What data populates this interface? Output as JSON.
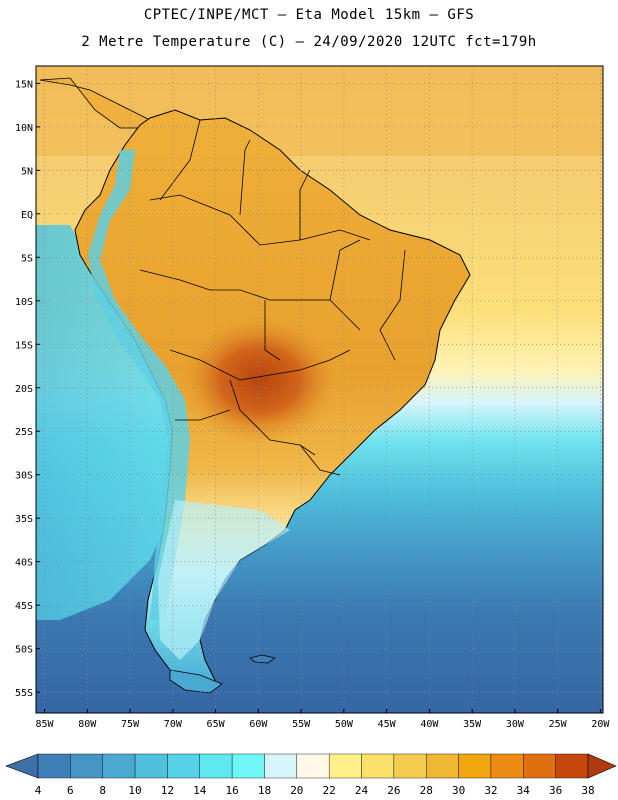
{
  "header": {
    "line1": "CPTEC/INPE/MCT –  Eta Model 15km – GFS",
    "line2": "2 Metre Temperature (C) – 24/09/2020 12UTC fct=179h"
  },
  "map": {
    "lat_labels": [
      "15N",
      "10N",
      "5N",
      "EQ",
      "5S",
      "10S",
      "15S",
      "20S",
      "25S",
      "30S",
      "35S",
      "40S",
      "45S",
      "50S",
      "55S"
    ],
    "lon_labels": [
      "85W",
      "80W",
      "75W",
      "70W",
      "65W",
      "60W",
      "55W",
      "50W",
      "45W",
      "40W",
      "35W",
      "30W",
      "25W",
      "20W"
    ],
    "region": "South America"
  },
  "colorbar": {
    "labels": [
      "4",
      "6",
      "8",
      "10",
      "12",
      "14",
      "16",
      "18",
      "20",
      "22",
      "24",
      "26",
      "28",
      "30",
      "32",
      "34",
      "36",
      "38"
    ],
    "colors": [
      "#3d6fa8",
      "#3f7fb8",
      "#4695c6",
      "#4aa9d2",
      "#4fc0dd",
      "#56d3e6",
      "#5ee8ef",
      "#6ff7f7",
      "#d6f6fb",
      "#fff8e6",
      "#fff08a",
      "#fbe06a",
      "#f5cd4e",
      "#efb833",
      "#f1a50f",
      "#ec8c13",
      "#e06f10",
      "#c4480c",
      "#b03a10"
    ]
  }
}
